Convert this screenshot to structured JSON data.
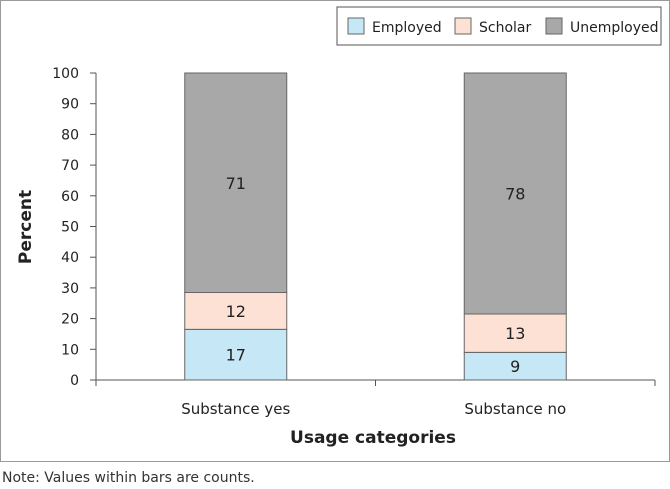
{
  "chart_data": {
    "type": "bar",
    "stacked": true,
    "categories": [
      "Substance yes",
      "Substance no"
    ],
    "series": [
      {
        "name": "Employed",
        "color": "#c6e7f5",
        "values": [
          16.5,
          9.0
        ],
        "labels": [
          "17",
          "9"
        ]
      },
      {
        "name": "Scholar",
        "color": "#fce1d4",
        "values": [
          12.0,
          12.5
        ],
        "labels": [
          "12",
          "13"
        ]
      },
      {
        "name": "Unemployed",
        "color": "#a8a8a8",
        "values": [
          71.5,
          78.5
        ],
        "labels": [
          "71",
          "78"
        ]
      }
    ],
    "xlabel": "Usage categories",
    "ylabel": "Percent",
    "ylim": [
      0,
      100
    ],
    "yticks": [
      "0",
      "10",
      "20",
      "30",
      "40",
      "50",
      "60",
      "70",
      "80",
      "90",
      "100"
    ],
    "grid": false,
    "legend_position": "top-right"
  },
  "note": "Note: Values within bars are counts."
}
